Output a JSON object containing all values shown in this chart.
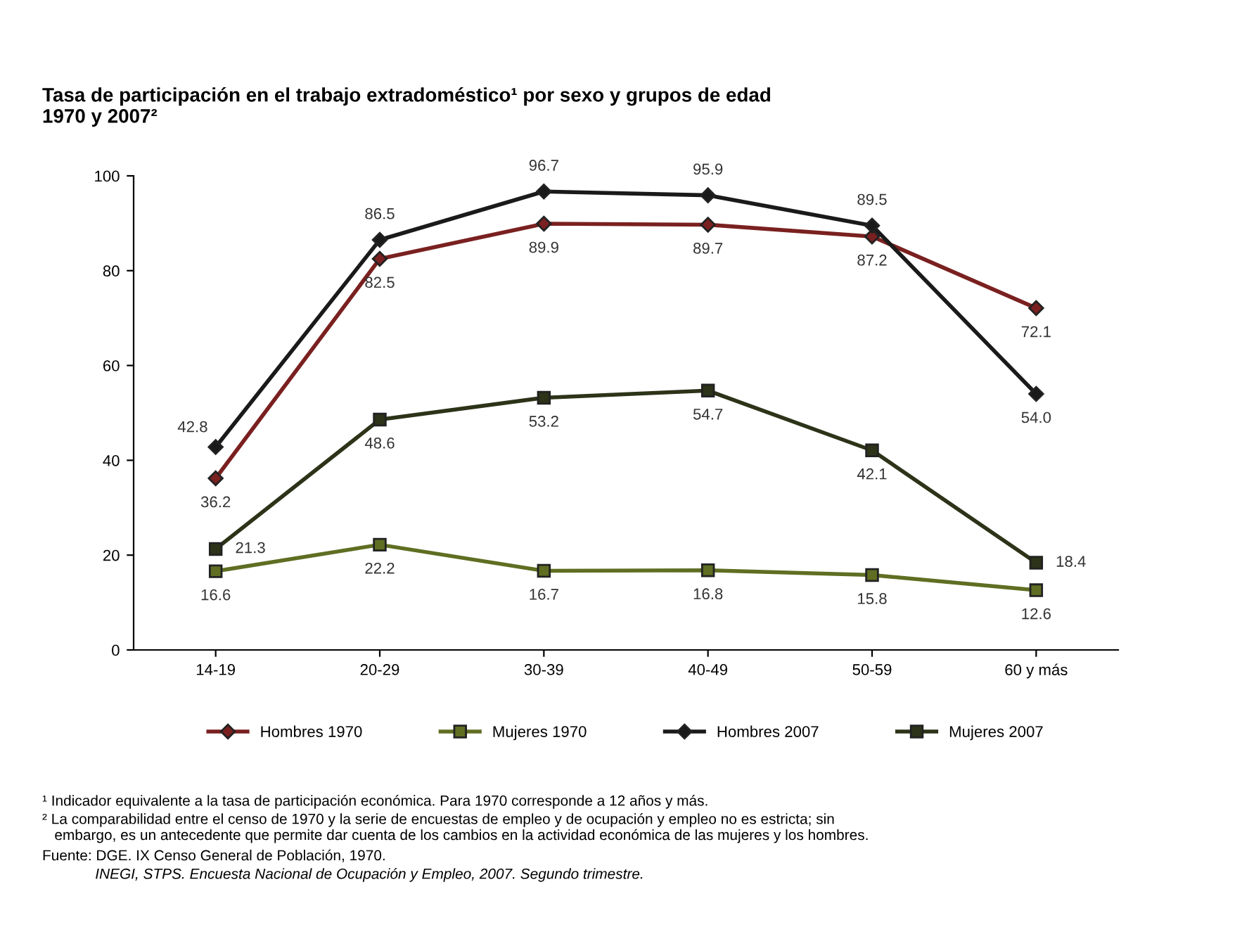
{
  "chart_data": {
    "type": "line",
    "title": "Tasa de participación en el trabajo extradoméstico¹ por sexo y grupos de edad\n1970 y 2007²",
    "categories": [
      "14-19",
      "20-29",
      "30-39",
      "40-49",
      "50-59",
      "60 y más"
    ],
    "series": [
      {
        "name": "Hombres 1970",
        "color": "#7a2020",
        "marker": "diamond",
        "values": [
          36.2,
          82.5,
          89.9,
          89.7,
          87.2,
          72.1
        ],
        "value_labels": [
          "36.2",
          "82.5",
          "89.9",
          "89.7",
          "87.2",
          "72.1"
        ]
      },
      {
        "name": "Mujeres 1970",
        "color": "#5f6e22",
        "marker": "square",
        "values": [
          16.6,
          22.2,
          16.7,
          16.8,
          15.8,
          12.6
        ],
        "value_labels": [
          "16.6",
          "22.2",
          "16.7",
          "16.8",
          "15.8",
          "12.6"
        ]
      },
      {
        "name": "Hombres 2007",
        "color": "#1a1a1a",
        "marker": "diamond",
        "values": [
          42.8,
          86.5,
          96.7,
          95.9,
          89.5,
          54.0
        ],
        "value_labels": [
          "42.8",
          "86.5",
          "96.7",
          "95.9",
          "89.5",
          "54.0"
        ]
      },
      {
        "name": "Mujeres 2007",
        "color": "#2c3318",
        "marker": "square",
        "values": [
          21.3,
          48.6,
          53.2,
          54.7,
          42.1,
          18.4
        ],
        "value_labels": [
          "21.3",
          "48.6",
          "53.2",
          "54.7",
          "42.1",
          "18.4"
        ]
      }
    ],
    "ylim": [
      0,
      100
    ],
    "yticks": [
      0,
      20,
      40,
      60,
      80,
      100
    ],
    "grid": false,
    "legend": "bottom",
    "annotations": [
      "¹ Indicador equivalente a la tasa de participación económica. Para 1970 corresponde a 12 años y más.",
      "² La comparabilidad entre el censo de 1970 y la serie de encuestas de empleo y de ocupación y empleo no es estricta; sin\n   embargo, es un antecedente que permite dar cuenta de los cambios en la actividad económica de las mujeres y los hombres.",
      "Fuente: DGE. IX Censo General de Población, 1970.",
      "             INEGI, STPS. Encuesta Nacional de Ocupación y Empleo, 2007. Segundo trimestre."
    ]
  }
}
